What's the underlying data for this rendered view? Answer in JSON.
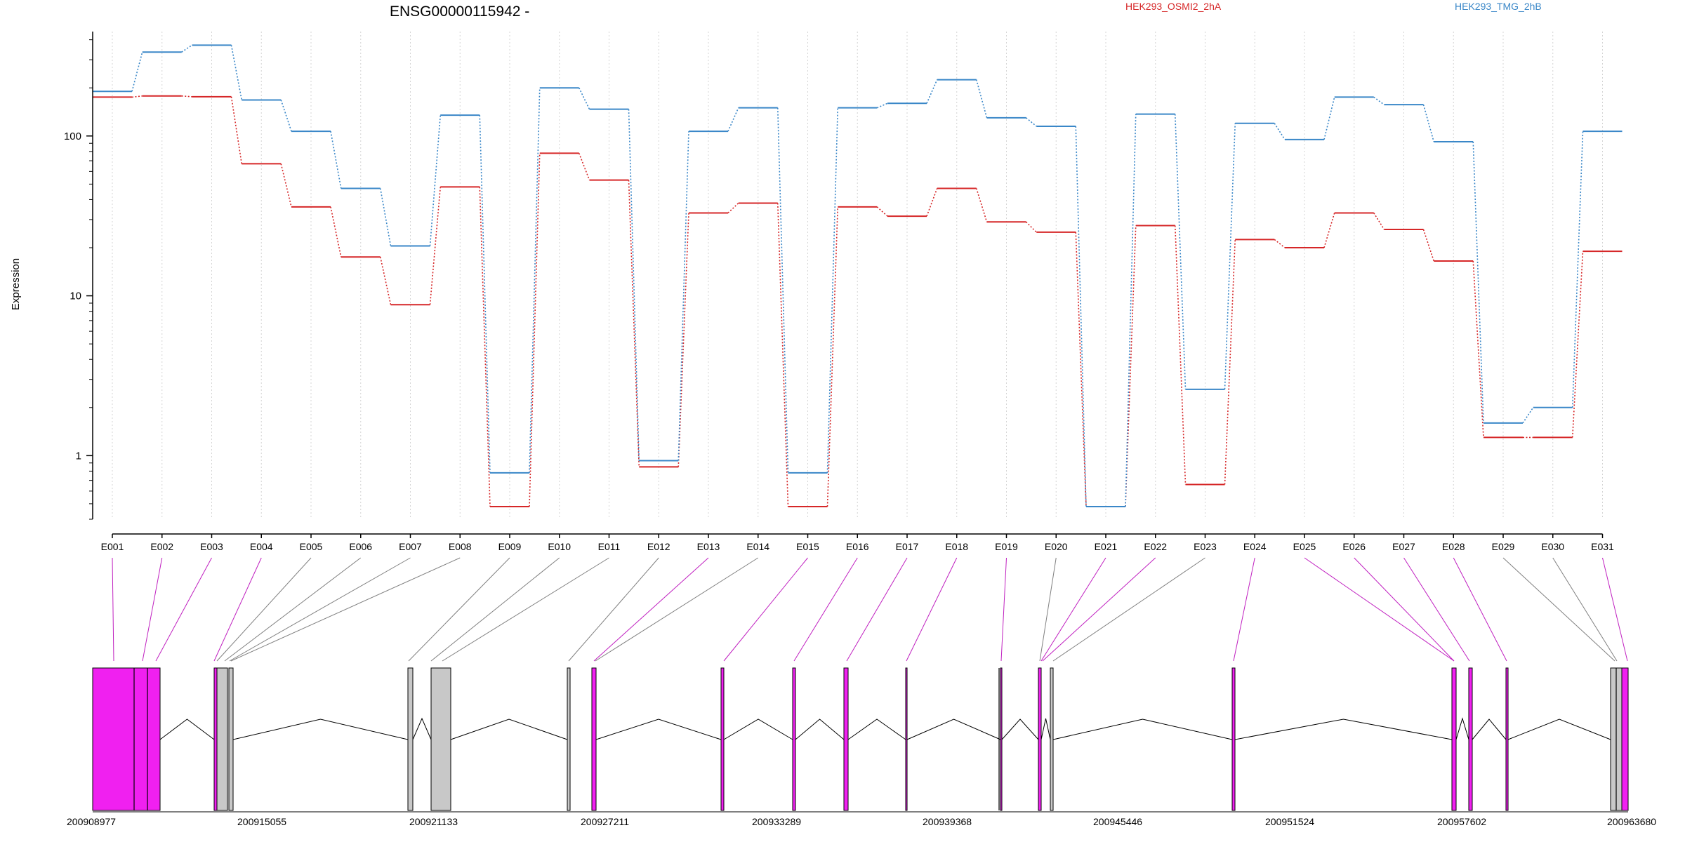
{
  "chart_data": {
    "type": "line",
    "title": "ENSG00000115942 -",
    "ylabel": "Expression",
    "xlabel": "",
    "yscale": "log",
    "ylim": [
      0.4,
      450
    ],
    "yticks": [
      1,
      10,
      100
    ],
    "ytick_labels": [
      "1",
      "10",
      "100"
    ],
    "grid": "vertical dotted lines at each exon",
    "legend_position": "top, horizontal",
    "categories": [
      "E001",
      "E002",
      "E003",
      "E004",
      "E005",
      "E006",
      "E007",
      "E008",
      "E009",
      "E010",
      "E011",
      "E012",
      "E013",
      "E014",
      "E015",
      "E016",
      "E017",
      "E018",
      "E019",
      "E020",
      "E021",
      "E022",
      "E023",
      "E024",
      "E025",
      "E026",
      "E027",
      "E028",
      "E029",
      "E030",
      "E031"
    ],
    "series": [
      {
        "name": "HEK293_OSMI2_2hA",
        "color": "#d62728",
        "values": [
          175,
          178,
          176,
          67,
          36,
          17.5,
          8.8,
          48,
          0.48,
          78,
          53,
          0.85,
          33,
          38,
          0.48,
          36,
          31.5,
          47,
          29,
          25,
          0.48,
          27.5,
          0.66,
          22.5,
          20,
          33,
          26,
          16.5,
          1.3,
          1.3,
          19
        ]
      },
      {
        "name": "HEK293_TMG_2hB",
        "color": "#3a87c8",
        "values": [
          190,
          335,
          370,
          168,
          107,
          47,
          20.5,
          135,
          0.78,
          200,
          147,
          0.93,
          107,
          150,
          0.78,
          150,
          160,
          225,
          130,
          115,
          0.48,
          137,
          2.6,
          120,
          95,
          175,
          157,
          92,
          1.6,
          2.0,
          107
        ]
      }
    ],
    "exon_link_colors": [
      "#c020c0",
      "#c020c0",
      "#c020c0",
      "#c020c0",
      "#808080",
      "#808080",
      "#808080",
      "#808080",
      "#808080",
      "#808080",
      "#808080",
      "#808080",
      "#c020c0",
      "#808080",
      "#c020c0",
      "#c020c0",
      "#c020c0",
      "#c020c0",
      "#c020c0",
      "#808080",
      "#c020c0",
      "#c020c0",
      "#808080",
      "#c020c0",
      "#c020c0",
      "#c020c0",
      "#c020c0",
      "#c020c0",
      "#808080",
      "#808080",
      "#c020c0"
    ],
    "gene_model": {
      "coord_labels": [
        "200908977",
        "200915055",
        "200921133",
        "200927211",
        "200933289",
        "200939368",
        "200945446",
        "200951524",
        "200957602",
        "200963680"
      ],
      "exon_fill_magenta": "#f020f0",
      "exon_fill_grey": "#c8c8c8"
    }
  }
}
